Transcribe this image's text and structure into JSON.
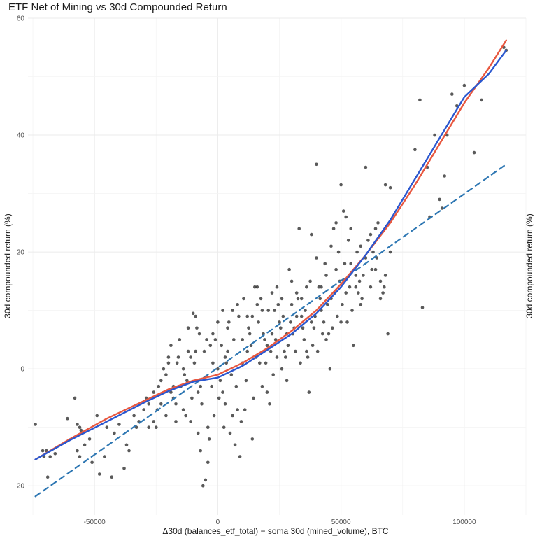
{
  "chart_data": {
    "type": "scatter",
    "title": "ETF Net of Mining vs 30d Compounded Return",
    "xlabel": "Δ30d (balances_etf_total) − soma 30d (mined_volume), BTC",
    "ylabel": "30d compounded return (%)",
    "ylabel_secondary": "30d compounded return (%)",
    "xlim": [
      -77000,
      125000
    ],
    "ylim": [
      -25,
      60
    ],
    "xticks": [
      -50000,
      0,
      50000,
      100000
    ],
    "xtick_labels": [
      "-50000",
      "0",
      "50000",
      "100000"
    ],
    "yticks": [
      -20,
      0,
      20,
      40,
      60
    ],
    "ytick_labels": [
      "-20",
      "0",
      "20",
      "40",
      "60"
    ],
    "grid": true,
    "legend": "none",
    "points": [
      [
        -74000,
        -9.5
      ],
      [
        -71000,
        -14
      ],
      [
        -70500,
        -15
      ],
      [
        -69500,
        -14
      ],
      [
        -68000,
        -15
      ],
      [
        -69000,
        -18.5
      ],
      [
        -66000,
        -14.5
      ],
      [
        -61000,
        -8.5
      ],
      [
        -58000,
        -5
      ],
      [
        -57000,
        -9.5
      ],
      [
        -56000,
        -10
      ],
      [
        -55000,
        -11
      ],
      [
        -55500,
        -10.5
      ],
      [
        -54000,
        -13
      ],
      [
        -52000,
        -12
      ],
      [
        -57000,
        -14
      ],
      [
        -56000,
        -15
      ],
      [
        -51000,
        -16
      ],
      [
        -49000,
        -8
      ],
      [
        -48000,
        -18
      ],
      [
        -46000,
        -15
      ],
      [
        -45000,
        -10
      ],
      [
        -43000,
        -18.5
      ],
      [
        -42000,
        -11
      ],
      [
        -40000,
        -9.5
      ],
      [
        -38000,
        -17
      ],
      [
        -37000,
        -13
      ],
      [
        -36000,
        -14
      ],
      [
        -34000,
        -8
      ],
      [
        -33000,
        -10
      ],
      [
        -32000,
        -9
      ],
      [
        -30000,
        -7
      ],
      [
        -29000,
        -5
      ],
      [
        -28000,
        -6
      ],
      [
        -26000,
        -9
      ],
      [
        -25000,
        -10
      ],
      [
        -24500,
        -7
      ],
      [
        -24000,
        -3
      ],
      [
        -23000,
        -2
      ],
      [
        -22000,
        0
      ],
      [
        -21000,
        -1
      ],
      [
        -20000,
        1
      ],
      [
        -19000,
        -4
      ],
      [
        -18000,
        -5
      ],
      [
        -17000,
        -6
      ],
      [
        -16000,
        2
      ],
      [
        -15000,
        -3
      ],
      [
        -14000,
        -7
      ],
      [
        -13000,
        -8
      ],
      [
        -12000,
        3
      ],
      [
        -11000,
        -9
      ],
      [
        -10000,
        9.5
      ],
      [
        -9000,
        9
      ],
      [
        -8000,
        -11
      ],
      [
        -7000,
        -14
      ],
      [
        -6000,
        -20
      ],
      [
        -5000,
        -19
      ],
      [
        -4000,
        -16
      ],
      [
        -3000,
        4
      ],
      [
        -2000,
        6
      ],
      [
        -1000,
        5
      ],
      [
        0,
        0
      ],
      [
        1000,
        -2
      ],
      [
        2000,
        -4
      ],
      [
        3000,
        2
      ],
      [
        4000,
        7
      ],
      [
        5000,
        -11
      ],
      [
        6000,
        -8
      ],
      [
        7000,
        -13
      ],
      [
        8000,
        11
      ],
      [
        9000,
        -15
      ],
      [
        10000,
        1
      ],
      [
        11000,
        -7
      ],
      [
        12000,
        3
      ],
      [
        13000,
        6
      ],
      [
        14000,
        9
      ],
      [
        15000,
        14
      ],
      [
        16000,
        11
      ],
      [
        17000,
        1
      ],
      [
        18000,
        -3
      ],
      [
        19000,
        5
      ],
      [
        20000,
        4
      ],
      [
        21000,
        -6
      ],
      [
        22000,
        13
      ],
      [
        23000,
        10
      ],
      [
        24000,
        2
      ],
      [
        25000,
        8
      ],
      [
        26000,
        0
      ],
      [
        27000,
        3
      ],
      [
        28000,
        6
      ],
      [
        29000,
        17
      ],
      [
        30000,
        11
      ],
      [
        31000,
        7
      ],
      [
        32000,
        13
      ],
      [
        33000,
        24
      ],
      [
        34000,
        9
      ],
      [
        35000,
        5
      ],
      [
        36000,
        3
      ],
      [
        37000,
        -4
      ],
      [
        38000,
        23
      ],
      [
        39000,
        7
      ],
      [
        40000,
        35
      ],
      [
        41000,
        14
      ],
      [
        42000,
        10
      ],
      [
        43000,
        8
      ],
      [
        44000,
        5
      ],
      [
        45000,
        6
      ],
      [
        46000,
        12
      ],
      [
        47000,
        24
      ],
      [
        48000,
        25
      ],
      [
        49000,
        20
      ],
      [
        50000,
        31.5
      ],
      [
        51000,
        27
      ],
      [
        52000,
        26
      ],
      [
        53000,
        22
      ],
      [
        54000,
        18
      ],
      [
        55000,
        4
      ],
      [
        56000,
        14
      ],
      [
        57000,
        13
      ],
      [
        58000,
        11
      ],
      [
        59000,
        16
      ],
      [
        60000,
        34.5
      ],
      [
        61000,
        22
      ],
      [
        62000,
        14
      ],
      [
        63000,
        20
      ],
      [
        64000,
        24
      ],
      [
        65000,
        25
      ],
      [
        66000,
        15
      ],
      [
        67000,
        13
      ],
      [
        68000,
        31.5
      ],
      [
        69000,
        6
      ],
      [
        70000,
        31
      ],
      [
        80000,
        37.5
      ],
      [
        82000,
        46
      ],
      [
        83000,
        10.5
      ],
      [
        85000,
        34.5
      ],
      [
        86000,
        26
      ],
      [
        88000,
        40
      ],
      [
        90000,
        29
      ],
      [
        91000,
        27.5
      ],
      [
        92000,
        33
      ],
      [
        93000,
        40
      ],
      [
        95000,
        47
      ],
      [
        97000,
        45
      ],
      [
        100000,
        48.5
      ],
      [
        104000,
        37
      ],
      [
        107000,
        46
      ],
      [
        116000,
        55
      ],
      [
        117000,
        54.5
      ],
      [
        -20000,
        2
      ],
      [
        -18000,
        -3
      ],
      [
        -16500,
        1
      ],
      [
        -14000,
        0
      ],
      [
        -12500,
        -2
      ],
      [
        -11000,
        2
      ],
      [
        -9000,
        3
      ],
      [
        -8000,
        -4
      ],
      [
        -7500,
        6
      ],
      [
        -6500,
        -6
      ],
      [
        -4500,
        5
      ],
      [
        -3500,
        -12
      ],
      [
        -2500,
        -3
      ],
      [
        -1500,
        -8
      ],
      [
        500,
        -5
      ],
      [
        1500,
        4
      ],
      [
        2500,
        -10
      ],
      [
        3500,
        1
      ],
      [
        4500,
        8
      ],
      [
        5500,
        -1
      ],
      [
        6500,
        5
      ],
      [
        7500,
        -3
      ],
      [
        8500,
        9
      ],
      [
        9500,
        -9
      ],
      [
        10500,
        12
      ],
      [
        11500,
        -2
      ],
      [
        12500,
        7
      ],
      [
        13500,
        4
      ],
      [
        14500,
        -5
      ],
      [
        15500,
        2
      ],
      [
        16500,
        8
      ],
      [
        17500,
        12
      ],
      [
        18500,
        6
      ],
      [
        19500,
        1
      ],
      [
        20500,
        10
      ],
      [
        21500,
        3
      ],
      [
        22500,
        -1
      ],
      [
        23500,
        5
      ],
      [
        24500,
        11
      ],
      [
        25500,
        7
      ],
      [
        26500,
        9
      ],
      [
        27500,
        2
      ],
      [
        28500,
        4
      ],
      [
        29500,
        8
      ],
      [
        30500,
        6
      ],
      [
        31500,
        3
      ],
      [
        32500,
        12
      ],
      [
        33500,
        1
      ],
      [
        34500,
        7
      ],
      [
        35500,
        10
      ],
      [
        36500,
        2
      ],
      [
        37500,
        15
      ],
      [
        38500,
        4
      ],
      [
        39500,
        9
      ],
      [
        40500,
        3
      ],
      [
        41500,
        12
      ],
      [
        42500,
        6
      ],
      [
        43500,
        18
      ],
      [
        44500,
        11
      ],
      [
        45500,
        0
      ],
      [
        46500,
        7
      ],
      [
        47500,
        13
      ],
      [
        48500,
        9
      ],
      [
        49500,
        15
      ],
      [
        50500,
        11
      ],
      [
        51500,
        18
      ],
      [
        52500,
        8
      ],
      [
        53500,
        14
      ],
      [
        54500,
        10
      ],
      [
        56500,
        20
      ],
      [
        57500,
        15
      ],
      [
        58500,
        12
      ],
      [
        62500,
        17
      ],
      [
        64500,
        19
      ],
      [
        67500,
        14
      ],
      [
        70000,
        20
      ],
      [
        -28000,
        -10
      ],
      [
        -26000,
        -4
      ],
      [
        -23000,
        -6
      ],
      [
        -21000,
        -8
      ],
      [
        -19000,
        4
      ],
      [
        -17000,
        -9
      ],
      [
        -15500,
        5
      ],
      [
        -13500,
        -1
      ],
      [
        -12000,
        7
      ],
      [
        -10500,
        -5
      ],
      [
        -9500,
        1
      ],
      [
        -8500,
        7
      ],
      [
        -7000,
        -3
      ],
      [
        -5500,
        3
      ],
      [
        -4000,
        -10
      ],
      [
        -2000,
        1
      ],
      [
        0,
        8
      ],
      [
        2000,
        10
      ],
      [
        3000,
        -6
      ],
      [
        4000,
        3
      ],
      [
        6000,
        10
      ],
      [
        8000,
        -7
      ],
      [
        10000,
        5
      ],
      [
        12000,
        9
      ],
      [
        14000,
        -12
      ],
      [
        16000,
        14
      ],
      [
        18000,
        10
      ],
      [
        20000,
        -4
      ],
      [
        22000,
        6
      ],
      [
        24000,
        14
      ],
      [
        26000,
        12
      ],
      [
        28000,
        -2
      ],
      [
        30000,
        15
      ],
      [
        32000,
        9
      ],
      [
        34000,
        12
      ],
      [
        36000,
        14
      ],
      [
        38000,
        8
      ],
      [
        40000,
        19
      ],
      [
        42000,
        14
      ],
      [
        44000,
        16
      ],
      [
        46000,
        21
      ],
      [
        48000,
        17
      ],
      [
        50000,
        8
      ],
      [
        52000,
        13
      ],
      [
        54000,
        24
      ],
      [
        56000,
        16
      ],
      [
        58000,
        21
      ],
      [
        60000,
        19
      ],
      [
        62000,
        23
      ],
      [
        64000,
        17
      ],
      [
        66000,
        12
      ],
      [
        68000,
        16
      ]
    ],
    "series": [
      {
        "style": "dashed",
        "color": "#2e77b3",
        "x": [
          -74000,
          117000
        ],
        "y": [
          -21.8,
          35.0
        ]
      },
      {
        "style": "solid",
        "color": "#e8573f",
        "x": [
          -74000,
          -60000,
          -45000,
          -30000,
          -20000,
          -10000,
          0,
          10000,
          20000,
          30000,
          40000,
          50000,
          60000,
          70000,
          80000,
          90000,
          100000,
          110000,
          117000
        ],
        "y": [
          -15.5,
          -12,
          -8.5,
          -5.5,
          -3.5,
          -2,
          -1,
          1,
          3.5,
          6.5,
          10,
          14.5,
          19.5,
          25,
          31.5,
          38.5,
          45.5,
          51.5,
          56.2
        ]
      },
      {
        "style": "solid",
        "color": "#2a57cf",
        "x": [
          -74000,
          -60000,
          -45000,
          -30000,
          -20000,
          -10000,
          0,
          10000,
          20000,
          30000,
          40000,
          50000,
          60000,
          70000,
          80000,
          90000,
          100000,
          110000,
          117000
        ],
        "y": [
          -15.5,
          -12.2,
          -9,
          -5.8,
          -3.8,
          -2.2,
          -1.5,
          0.5,
          3.2,
          6,
          9.5,
          14,
          19.5,
          25.5,
          32.5,
          39.5,
          46.5,
          50.5,
          54.5
        ]
      }
    ]
  }
}
